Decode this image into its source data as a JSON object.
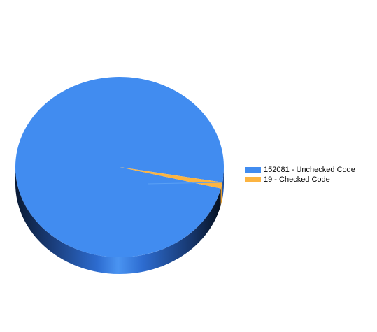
{
  "chart_data": {
    "type": "pie",
    "style": "3d",
    "slices": [
      {
        "label": "152081 - Unchecked Code",
        "value": 152081,
        "color": "#418CF0"
      },
      {
        "label": "19 - Checked Code",
        "value": 19,
        "color": "#FCB441"
      }
    ],
    "legend_position": "right"
  }
}
